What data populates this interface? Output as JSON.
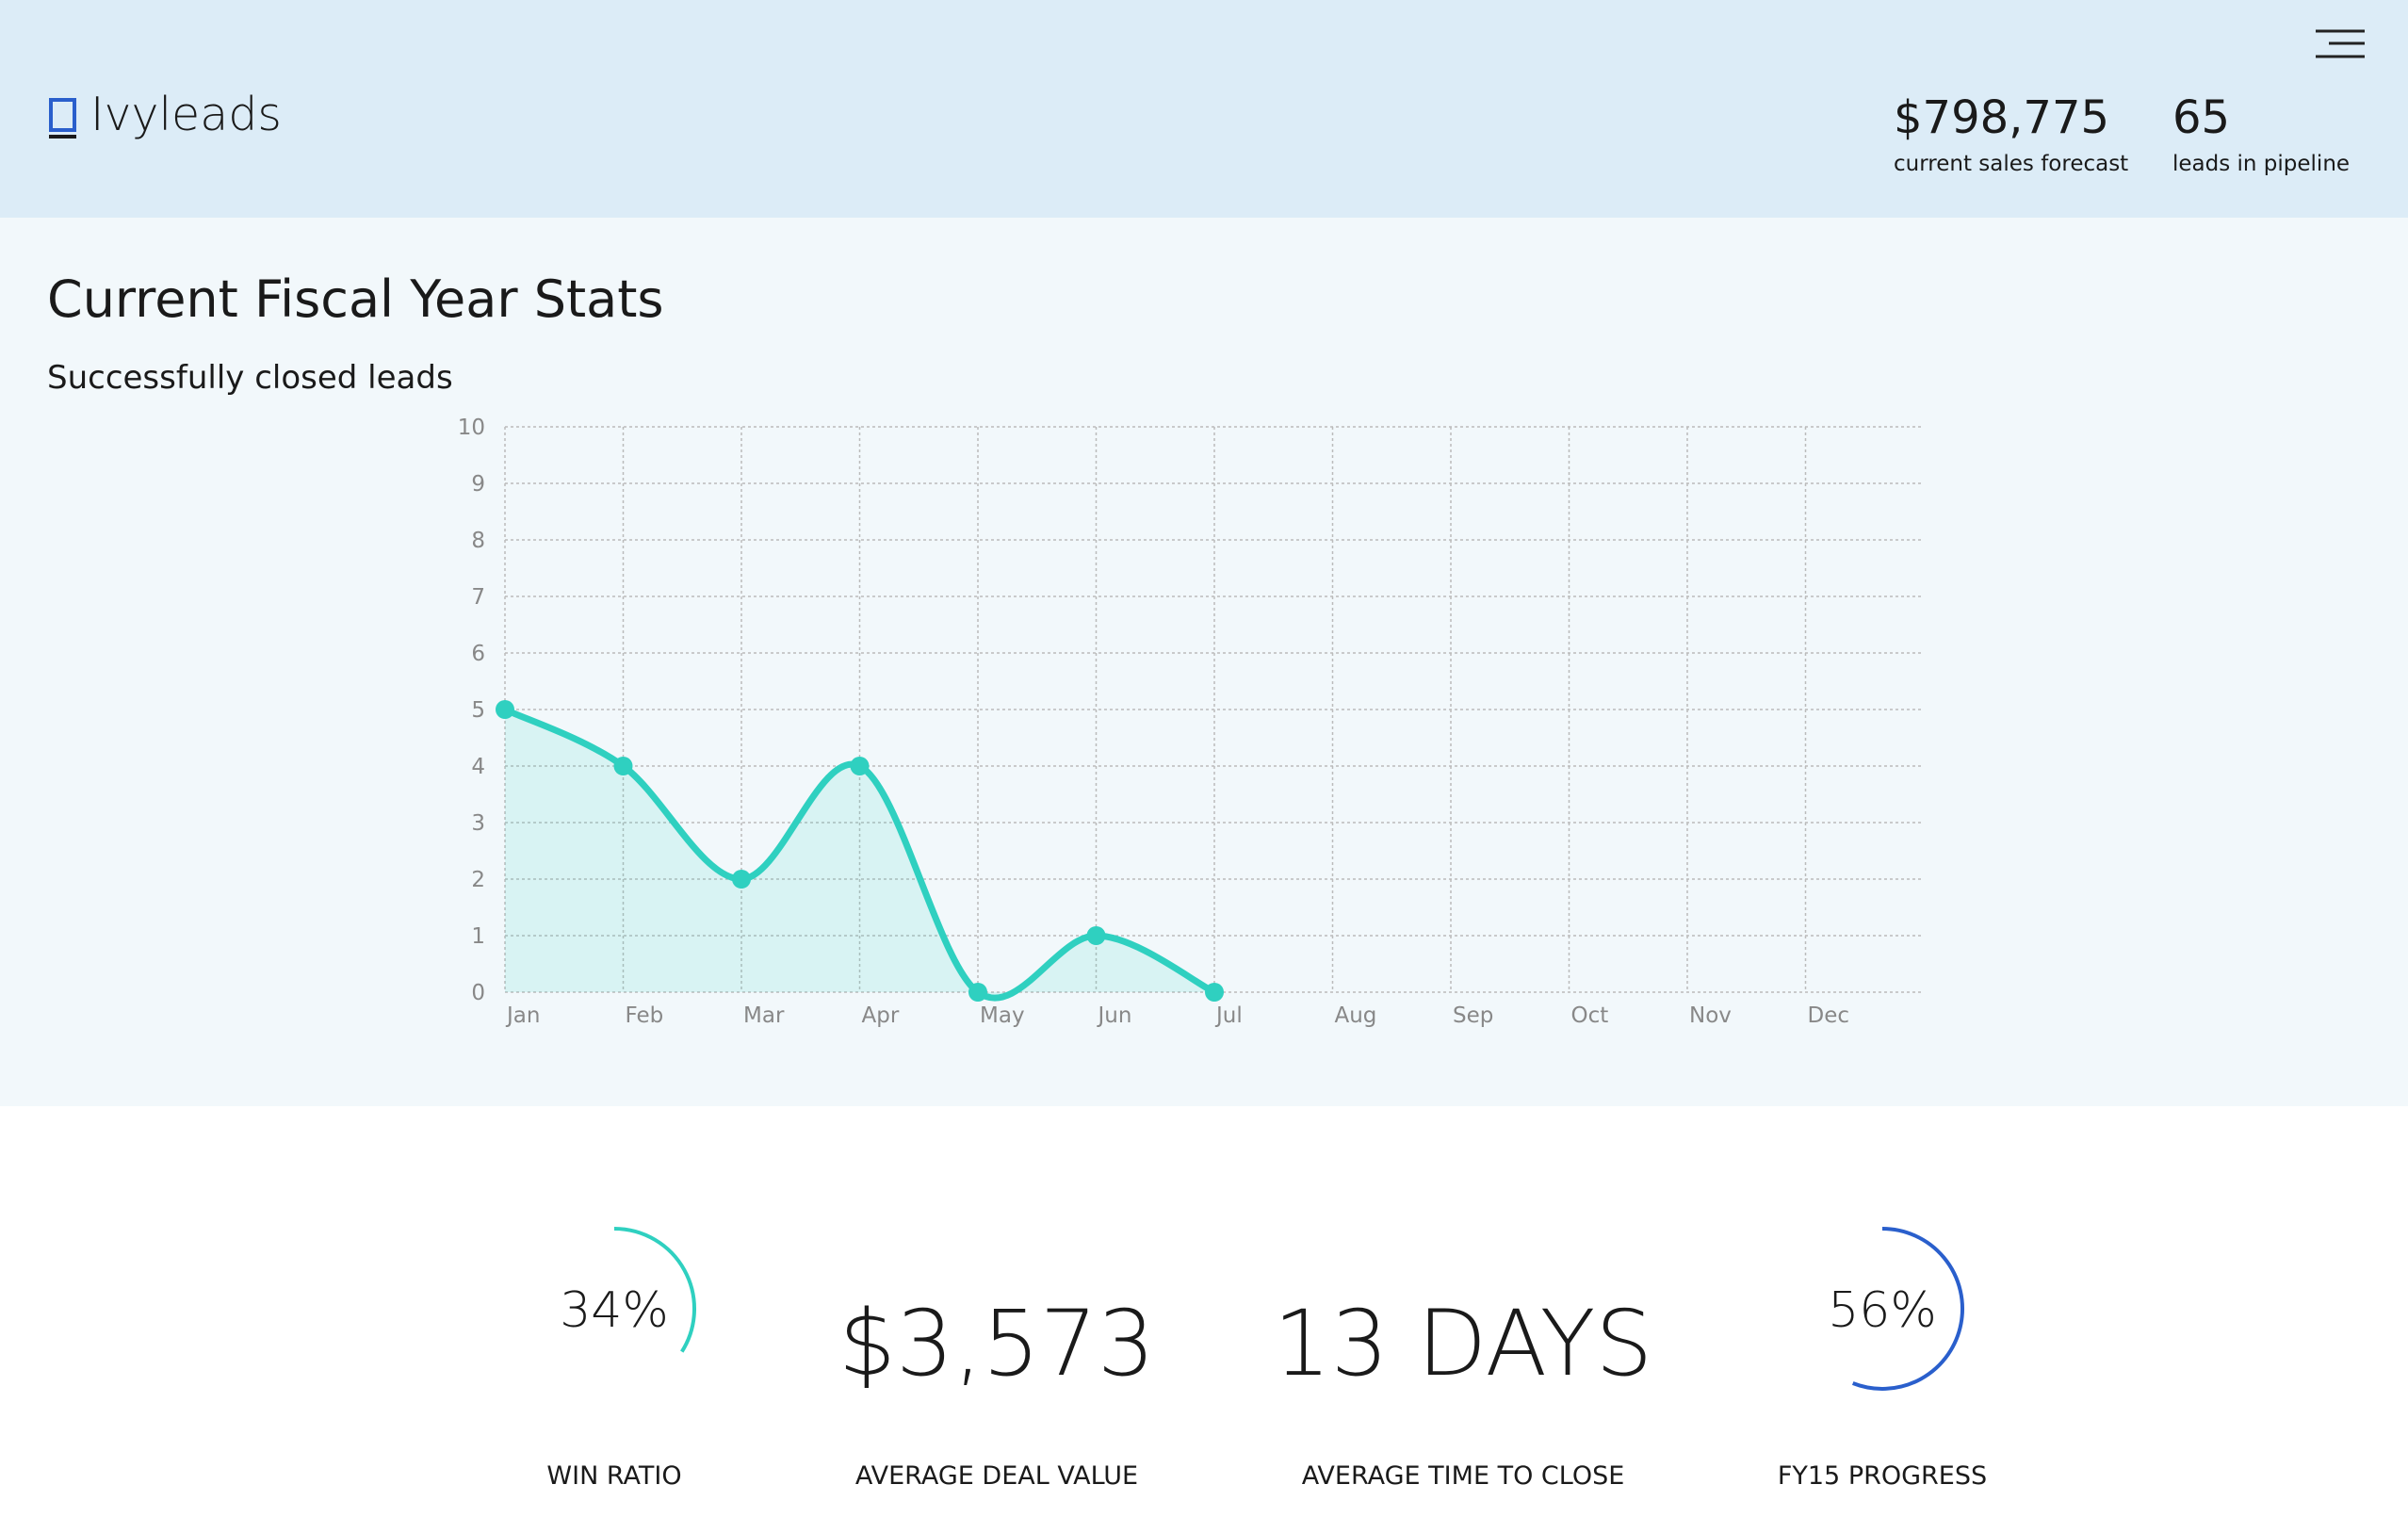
{
  "header": {
    "brand": "Ivyleads",
    "metrics": [
      {
        "value": "$798,775",
        "label": "current sales forecast"
      },
      {
        "value": "65",
        "label": "leads in pipeline"
      }
    ]
  },
  "section_title": "Current Fiscal Year Stats",
  "chart_data": {
    "type": "line",
    "title": "Successfully closed leads",
    "categories": [
      "Jan",
      "Feb",
      "Mar",
      "Apr",
      "May",
      "Jun",
      "Jul",
      "Aug",
      "Sep",
      "Oct",
      "Nov",
      "Dec"
    ],
    "values": [
      5,
      4,
      2,
      4,
      0,
      1,
      0,
      null,
      null,
      null,
      null,
      null
    ],
    "color": "#2fd0c0",
    "ylim": [
      0,
      10
    ],
    "yticks": [
      0,
      1,
      2,
      3,
      4,
      5,
      6,
      7,
      8,
      9,
      10
    ],
    "grid": true
  },
  "stats": [
    {
      "value": 34,
      "value_label": "34%",
      "name": "WIN RATIO",
      "color": "#2fd0c0"
    },
    {
      "text": "$3,573",
      "name": "AVERAGE DEAL VALUE"
    },
    {
      "text": "13 DAYS",
      "name": "AVERAGE TIME TO CLOSE"
    },
    {
      "value": 56,
      "value_label": "56%",
      "name": "FY15 PROGRESS",
      "color": "#2a5fcc"
    }
  ]
}
